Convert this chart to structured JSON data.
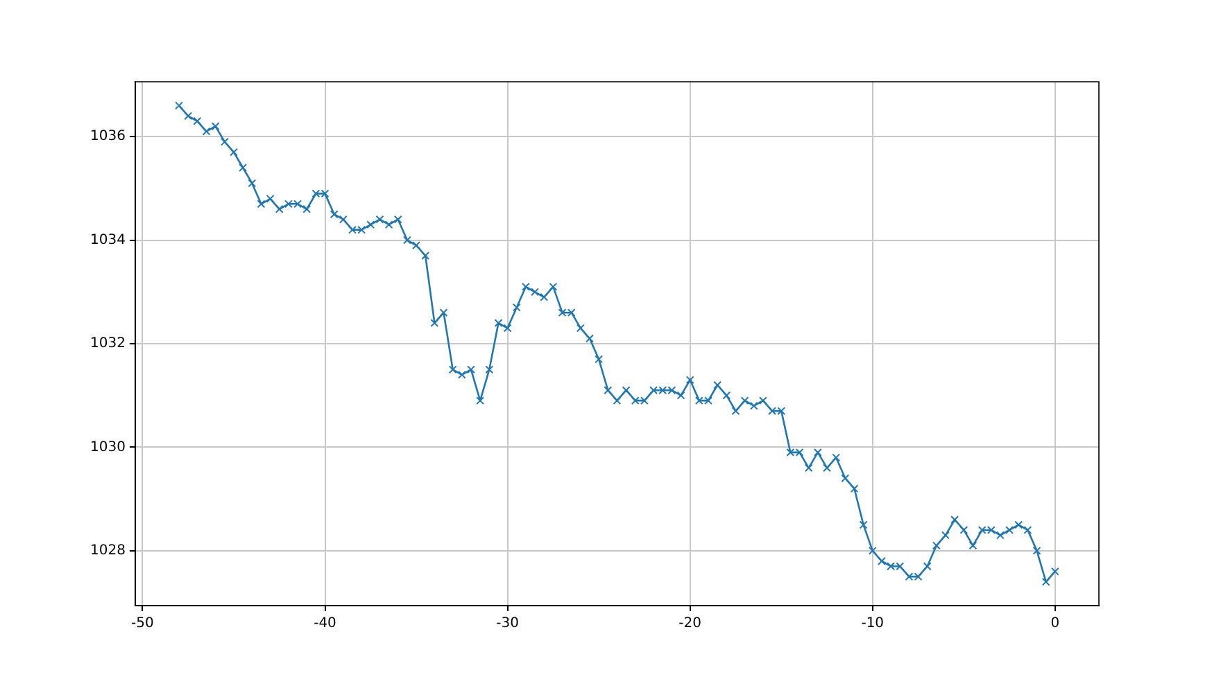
{
  "chart_data": {
    "type": "line",
    "x": [
      -48,
      -47.5,
      -47,
      -46.5,
      -46,
      -45.5,
      -45,
      -44.5,
      -44,
      -43.5,
      -43,
      -42.5,
      -42,
      -41.5,
      -41,
      -40.5,
      -40,
      -39.5,
      -39,
      -38.5,
      -38,
      -37.5,
      -37,
      -36.5,
      -36,
      -35.5,
      -35,
      -34.5,
      -34,
      -33.5,
      -33,
      -32.5,
      -32,
      -31.5,
      -31,
      -30.5,
      -30,
      -29.5,
      -29,
      -28.5,
      -28,
      -27.5,
      -27,
      -26.5,
      -26,
      -25.5,
      -25,
      -24.5,
      -24,
      -23.5,
      -23,
      -22.5,
      -22,
      -21.5,
      -21,
      -20.5,
      -20,
      -19.5,
      -19,
      -18.5,
      -18,
      -17.5,
      -17,
      -16.5,
      -16,
      -15.5,
      -15,
      -14.5,
      -14,
      -13.5,
      -13,
      -12.5,
      -12,
      -11.5,
      -11,
      -10.5,
      -10,
      -9.5,
      -9,
      -8.5,
      -8,
      -7.5,
      -7,
      -6.5,
      -6,
      -5.5,
      -5,
      -4.5,
      -4,
      -3.5,
      -3,
      -2.5,
      -2,
      -1.5,
      -1,
      -0.5,
      0
    ],
    "series": [
      {
        "color": "#1f77b4",
        "values": [
          1036.6,
          1036.4,
          1036.3,
          1036.1,
          1036.2,
          1035.9,
          1035.7,
          1035.4,
          1035.1,
          1034.7,
          1034.8,
          1034.6,
          1034.7,
          1034.7,
          1034.6,
          1034.9,
          1034.9,
          1034.5,
          1034.4,
          1034.2,
          1034.2,
          1034.3,
          1034.4,
          1034.3,
          1034.4,
          1034.0,
          1033.9,
          1033.7,
          1032.4,
          1032.6,
          1031.5,
          1031.4,
          1031.5,
          1030.9,
          1031.5,
          1032.4,
          1032.3,
          1032.7,
          1033.1,
          1033.0,
          1032.9,
          1033.1,
          1032.6,
          1032.6,
          1032.3,
          1032.1,
          1031.7,
          1031.1,
          1030.9,
          1031.1,
          1030.9,
          1030.9,
          1031.1,
          1031.1,
          1031.1,
          1031.0,
          1031.3,
          1030.9,
          1030.9,
          1031.2,
          1031.0,
          1030.7,
          1030.9,
          1030.8,
          1030.9,
          1030.7,
          1030.7,
          1029.9,
          1029.9,
          1029.6,
          1029.9,
          1029.6,
          1029.8,
          1029.4,
          1029.2,
          1028.5,
          1028.0,
          1027.8,
          1027.7,
          1027.7,
          1027.5,
          1027.5,
          1027.7,
          1028.1,
          1028.3,
          1028.6,
          1028.4,
          1028.1,
          1028.4,
          1028.4,
          1028.3,
          1028.4,
          1028.5,
          1028.4,
          1028.0,
          1027.4,
          1027.6
        ]
      }
    ],
    "xlim": [
      -50.4,
      2.4
    ],
    "xticks": [
      -50,
      -40,
      -30,
      -20,
      -10,
      0
    ],
    "ylim": [
      1026.94,
      1037.06
    ],
    "yticks": [
      1028,
      1030,
      1032,
      1034,
      1036
    ],
    "grid": true,
    "legend": false,
    "marker": "cross",
    "line_style": "solid"
  }
}
